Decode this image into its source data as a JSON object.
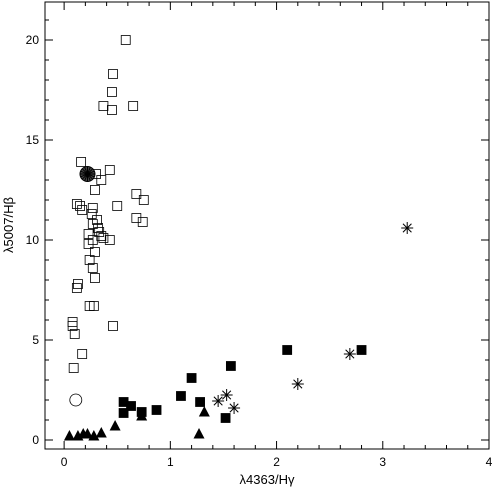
{
  "chart_data": {
    "type": "scatter",
    "title": "",
    "xlabel": "λ4363/Hγ",
    "ylabel": "λ5007/Hβ",
    "xlim": [
      -0.18,
      4.0
    ],
    "ylim": [
      -0.45,
      21.9
    ],
    "xticks": [
      0,
      1,
      2,
      3,
      4
    ],
    "yticks": [
      0,
      5,
      10,
      15,
      20
    ],
    "grid": false,
    "legend": "none",
    "series": [
      {
        "marker": "open-square",
        "points": [
          [
            0.58,
            20.0
          ],
          [
            0.46,
            18.3
          ],
          [
            0.45,
            17.4
          ],
          [
            0.37,
            16.7
          ],
          [
            0.65,
            16.7
          ],
          [
            0.45,
            16.5
          ],
          [
            0.16,
            13.9
          ],
          [
            0.43,
            13.5
          ],
          [
            0.3,
            13.3
          ],
          [
            0.35,
            13.0
          ],
          [
            0.29,
            12.5
          ],
          [
            0.68,
            12.3
          ],
          [
            0.75,
            12.0
          ],
          [
            0.12,
            11.8
          ],
          [
            0.15,
            11.7
          ],
          [
            0.5,
            11.7
          ],
          [
            0.27,
            11.6
          ],
          [
            0.17,
            11.5
          ],
          [
            0.26,
            11.3
          ],
          [
            0.68,
            11.1
          ],
          [
            0.31,
            11.0
          ],
          [
            0.74,
            10.9
          ],
          [
            0.27,
            10.8
          ],
          [
            0.32,
            10.6
          ],
          [
            0.33,
            10.4
          ],
          [
            0.23,
            10.3
          ],
          [
            0.35,
            10.2
          ],
          [
            0.37,
            10.1
          ],
          [
            0.27,
            10.0
          ],
          [
            0.43,
            10.0
          ],
          [
            0.23,
            9.8
          ],
          [
            0.29,
            9.4
          ],
          [
            0.24,
            9.0
          ],
          [
            0.27,
            8.6
          ],
          [
            0.29,
            8.1
          ],
          [
            0.13,
            7.8
          ],
          [
            0.12,
            7.6
          ],
          [
            0.24,
            6.7
          ],
          [
            0.28,
            6.7
          ],
          [
            0.08,
            5.9
          ],
          [
            0.08,
            5.7
          ],
          [
            0.46,
            5.7
          ],
          [
            0.1,
            5.3
          ],
          [
            0.17,
            4.3
          ],
          [
            0.09,
            3.6
          ]
        ]
      },
      {
        "marker": "filled-square",
        "points": [
          [
            2.1,
            4.5
          ],
          [
            2.8,
            4.5
          ],
          [
            1.57,
            3.7
          ],
          [
            1.2,
            3.1
          ],
          [
            1.1,
            2.2
          ],
          [
            1.28,
            1.9
          ],
          [
            0.56,
            1.9
          ],
          [
            0.63,
            1.7
          ],
          [
            0.87,
            1.5
          ],
          [
            0.73,
            1.4
          ],
          [
            0.56,
            1.35
          ],
          [
            1.52,
            1.1
          ]
        ]
      },
      {
        "marker": "filled-triangle",
        "points": [
          [
            0.05,
            0.2
          ],
          [
            0.13,
            0.2
          ],
          [
            0.18,
            0.3
          ],
          [
            0.22,
            0.3
          ],
          [
            0.28,
            0.2
          ],
          [
            0.35,
            0.35
          ],
          [
            0.48,
            0.7
          ],
          [
            0.73,
            1.2
          ],
          [
            1.32,
            1.4
          ],
          [
            1.27,
            0.3
          ]
        ]
      },
      {
        "marker": "asterisk",
        "points": [
          [
            3.23,
            10.6
          ],
          [
            2.69,
            4.3
          ],
          [
            2.2,
            2.8
          ],
          [
            1.53,
            2.25
          ],
          [
            1.45,
            1.95
          ],
          [
            1.6,
            1.6
          ]
        ]
      },
      {
        "marker": "open-circle",
        "points": [
          [
            0.11,
            2.0
          ]
        ]
      },
      {
        "marker": "starred-circle",
        "points": [
          [
            0.22,
            13.3
          ]
        ]
      }
    ]
  }
}
